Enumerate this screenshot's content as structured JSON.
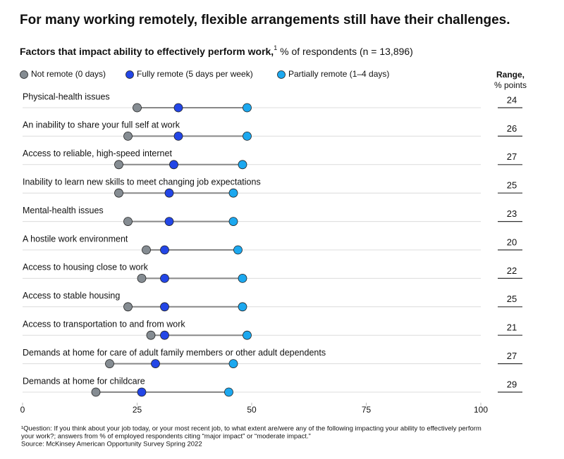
{
  "chart_data": {
    "type": "dot",
    "title": "For many working remotely, flexible arrangements still have their challenges.",
    "subtitle_bold": "Factors that impact ability to effectively perform work,",
    "subtitle_sup": "1",
    "subtitle_rest": " % of respondents (n = 13,896)",
    "categories": [
      "Physical-health issues",
      "An inability to share your full self at work",
      "Access to reliable, high-speed internet",
      "Inability to learn new skills to meet changing job expectations",
      "Mental-health issues",
      "A hostile work environment",
      "Access to housing close to work",
      "Access to stable housing",
      "Access to transportation to and from work",
      "Demands at home for care of adult family members or other adult dependents",
      "Demands at home for childcare"
    ],
    "series": [
      {
        "name": "Not remote (0 days)",
        "color": "#858c92",
        "values": [
          25,
          23,
          21,
          21,
          23,
          27,
          26,
          23,
          28,
          19,
          16
        ]
      },
      {
        "name": "Fully remote (5 days per week)",
        "color": "#2346e6",
        "values": [
          34,
          34,
          33,
          32,
          32,
          31,
          31,
          31,
          31,
          29,
          26
        ]
      },
      {
        "name": "Partially remote (1–4 days)",
        "color": "#1ca8ef",
        "values": [
          49,
          49,
          48,
          46,
          46,
          47,
          48,
          48,
          49,
          46,
          45
        ]
      }
    ],
    "range_header": [
      "Range,",
      "% points"
    ],
    "ranges": [
      24,
      26,
      27,
      25,
      23,
      20,
      22,
      25,
      21,
      27,
      29
    ],
    "xlim": [
      0,
      100
    ],
    "xticks": [
      0,
      25,
      50,
      75,
      100
    ],
    "footnotes": [
      "¹Question: If you think about your job today, or your most recent job, to what extent are/were any of the following impacting your ability to effectively perform",
      "your work?; answers from % of employed respondents citing “major impact” or “moderate impact.”",
      "Source: McKinsey American Opportunity Survey Spring 2022"
    ]
  }
}
